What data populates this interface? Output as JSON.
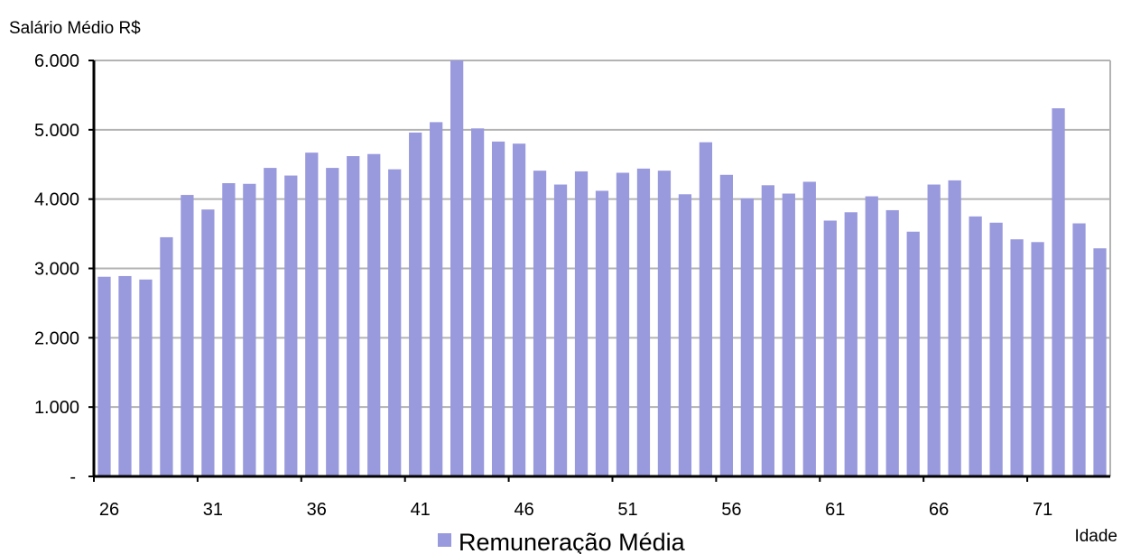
{
  "chart_data": {
    "type": "bar",
    "ylabel": "Salário Médio R$",
    "xlabel": "Idade",
    "ylim": [
      0,
      6000
    ],
    "y_ticks": [
      {
        "value": 0,
        "label": "-"
      },
      {
        "value": 1000,
        "label": "1.000"
      },
      {
        "value": 2000,
        "label": "2.000"
      },
      {
        "value": 3000,
        "label": "3.000"
      },
      {
        "value": 4000,
        "label": "4.000"
      },
      {
        "value": 5000,
        "label": "5.000"
      },
      {
        "value": 6000,
        "label": "6.000"
      }
    ],
    "x_tick_labels": [
      "26",
      "31",
      "36",
      "41",
      "46",
      "51",
      "56",
      "61",
      "66",
      "71"
    ],
    "categories": [
      26,
      27,
      28,
      29,
      30,
      31,
      32,
      33,
      34,
      35,
      36,
      37,
      38,
      39,
      40,
      41,
      42,
      43,
      44,
      45,
      46,
      47,
      48,
      49,
      50,
      51,
      52,
      53,
      54,
      55,
      56,
      57,
      58,
      59,
      60,
      61,
      62,
      63,
      64,
      65,
      66,
      67,
      68,
      69,
      70,
      71,
      72,
      73,
      74
    ],
    "series": [
      {
        "name": "Remuneração Média",
        "color": "#9999dd",
        "values": [
          2880,
          2890,
          2840,
          3450,
          4060,
          3850,
          4230,
          4220,
          4450,
          4340,
          4670,
          4450,
          4620,
          4650,
          4430,
          4960,
          5110,
          6000,
          5020,
          4830,
          4800,
          4410,
          4210,
          4400,
          4120,
          4380,
          4440,
          4410,
          4070,
          4820,
          4350,
          4010,
          4200,
          4080,
          4250,
          3690,
          3810,
          4040,
          3840,
          3530,
          4210,
          4270,
          3750,
          3660,
          3420,
          3380,
          5310,
          3650,
          3290
        ]
      }
    ],
    "grid": true,
    "legend_position": "bottom"
  },
  "colors": {
    "bar": "#9999dd",
    "grid": "#b3b3b3",
    "axis": "#000000"
  }
}
